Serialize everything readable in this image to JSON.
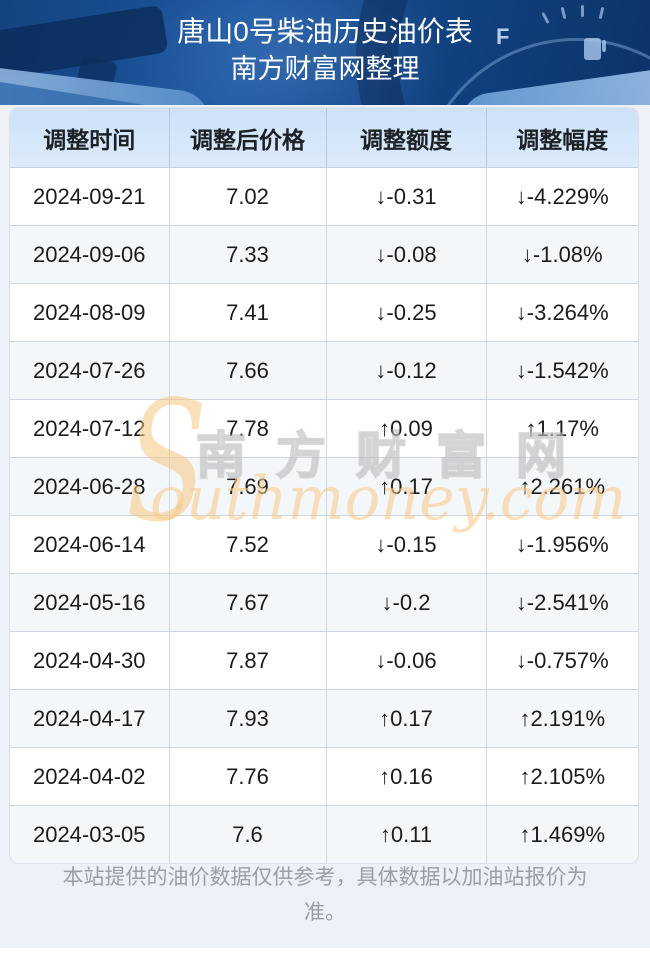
{
  "hero": {
    "title": "唐山0号柴油历史油价表",
    "subtitle": "南方财富网整理",
    "gauge_full_label": "F"
  },
  "table": {
    "columns": [
      "调整时间",
      "调整后价格",
      "调整额度",
      "调整幅度"
    ],
    "rows": [
      {
        "date": "2024-09-21",
        "price": "7.02",
        "change": "↓-0.31",
        "pct": "↓-4.229%",
        "direction": "down"
      },
      {
        "date": "2024-09-06",
        "price": "7.33",
        "change": "↓-0.08",
        "pct": "↓-1.08%",
        "direction": "down"
      },
      {
        "date": "2024-08-09",
        "price": "7.41",
        "change": "↓-0.25",
        "pct": "↓-3.264%",
        "direction": "down"
      },
      {
        "date": "2024-07-26",
        "price": "7.66",
        "change": "↓-0.12",
        "pct": "↓-1.542%",
        "direction": "down"
      },
      {
        "date": "2024-07-12",
        "price": "7.78",
        "change": "↑0.09",
        "pct": "↑1.17%",
        "direction": "up"
      },
      {
        "date": "2024-06-28",
        "price": "7.69",
        "change": "↑0.17",
        "pct": "↑2.261%",
        "direction": "up"
      },
      {
        "date": "2024-06-14",
        "price": "7.52",
        "change": "↓-0.15",
        "pct": "↓-1.956%",
        "direction": "down"
      },
      {
        "date": "2024-05-16",
        "price": "7.67",
        "change": "↓-0.2",
        "pct": "↓-2.541%",
        "direction": "down"
      },
      {
        "date": "2024-04-30",
        "price": "7.87",
        "change": "↓-0.06",
        "pct": "↓-0.757%",
        "direction": "down"
      },
      {
        "date": "2024-04-17",
        "price": "7.93",
        "change": "↑0.17",
        "pct": "↑2.191%",
        "direction": "up"
      },
      {
        "date": "2024-04-02",
        "price": "7.76",
        "change": "↑0.16",
        "pct": "↑2.105%",
        "direction": "up"
      },
      {
        "date": "2024-03-05",
        "price": "7.6",
        "change": "↑0.11",
        "pct": "↑1.469%",
        "direction": "up"
      }
    ]
  },
  "watermark": {
    "swoosh": "S",
    "brand": "南方财富网",
    "script": "outhmoney.com"
  },
  "footer": {
    "disclaimer": "本站提供的油价数据仅供参考，具体数据以加油站报价为准。"
  },
  "colors": {
    "up": "#f21212",
    "down": "#0e940e"
  }
}
